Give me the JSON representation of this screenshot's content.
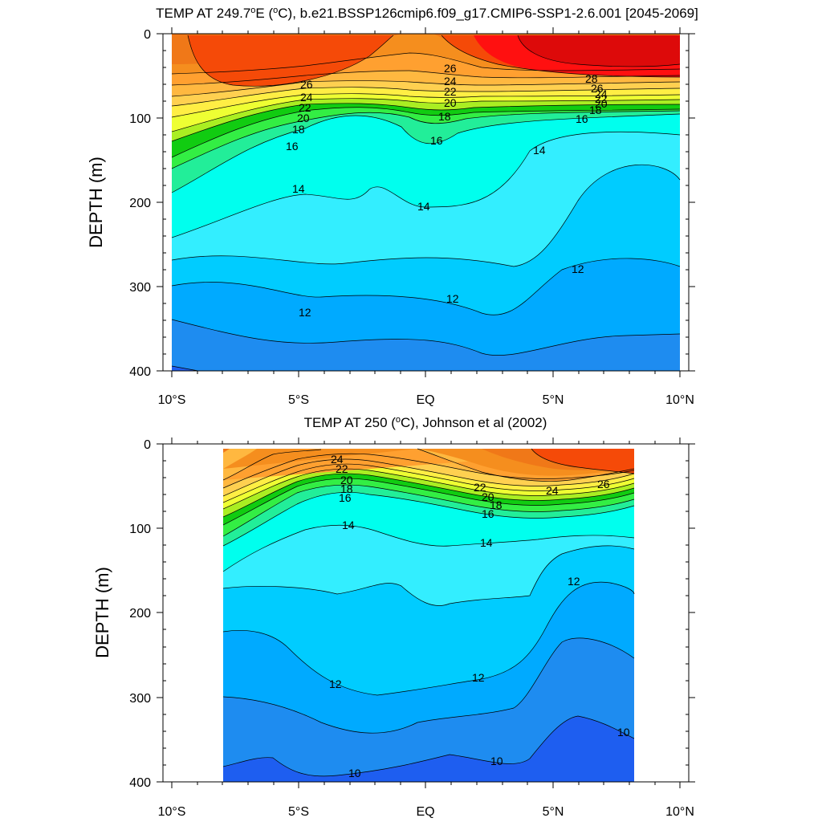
{
  "figure": {
    "panels": [
      {
        "title_main": "TEMP AT 249.7",
        "title_deg": "o",
        "title_rest": "E (",
        "title_deg2": "o",
        "title_tail": "C), b.e21.BSSP126cmip6.f09_g17.CMIP6-SSP1-2.6.001 [2045-2069]",
        "ylabel": "DEPTH (m)"
      },
      {
        "title_main": "TEMP AT 250 (",
        "title_deg": "o",
        "title_rest": "C), Johnson et al (2002)",
        "title_deg2": "",
        "title_tail": "",
        "ylabel": "DEPTH (m)"
      }
    ],
    "x_tick_labels": [
      "10°S",
      "5°S",
      "EQ",
      "5°N",
      "10°N"
    ],
    "y_tick_labels": [
      "0",
      "100",
      "200",
      "300",
      "400"
    ],
    "colors": {
      "c10": "#1e5ef0",
      "c11": "#1e8cf0",
      "c12": "#00aaff",
      "c13": "#00ccff",
      "c14": "#33eeff",
      "c15": "#00ffee",
      "c16": "#22ee99",
      "c17": "#33ee44",
      "c18": "#11cc11",
      "c19": "#aaee22",
      "c20": "#eeff33",
      "c21": "#ffee44",
      "c22": "#ffd050",
      "c23": "#ffb840",
      "c24": "#ffa030",
      "c25": "#f58e1e",
      "c26": "#f07818",
      "c27": "#f54a08",
      "c28": "#ff1010",
      "c29": "#dd0a0a"
    }
  },
  "chart_data": [
    {
      "type": "heatmap",
      "subtype": "filled contour",
      "title": "TEMP AT 249.7°E (°C), b.e21.BSSP126cmip6.f09_g17.CMIP6-SSP1-2.6.001 [2045-2069]",
      "xlabel": "",
      "ylabel": "DEPTH (m)",
      "xlim": [
        -10,
        10
      ],
      "ylim": [
        400,
        0
      ],
      "x_ticks": [
        -10,
        -5,
        0,
        5,
        10
      ],
      "y_ticks": [
        0,
        100,
        200,
        300,
        400
      ],
      "grid": false,
      "data_extent_x": [
        -10,
        10
      ],
      "isotherms": {
        "x": [
          -10,
          -8,
          -6,
          -4,
          -2,
          0,
          2,
          4,
          6,
          8,
          10
        ],
        "levels": [
          {
            "t": 28,
            "depth": [
              null,
              null,
              null,
              null,
              null,
              null,
              null,
              45,
              50,
              48,
              45
            ]
          },
          {
            "t": 26,
            "depth": [
              45,
              60,
              62,
              55,
              45,
              48,
              52,
              58,
              62,
              60,
              58
            ]
          },
          {
            "t": 24,
            "depth": [
              70,
              75,
              72,
              68,
              64,
              70,
              72,
              72,
              74,
              72,
              70
            ]
          },
          {
            "t": 22,
            "depth": [
              82,
              84,
              80,
              76,
              74,
              80,
              80,
              80,
              80,
              78,
              76
            ]
          },
          {
            "t": 20,
            "depth": [
              100,
              96,
              88,
              82,
              82,
              90,
              86,
              84,
              84,
              82,
              80
            ]
          },
          {
            "t": 18,
            "depth": [
              130,
              115,
              100,
              88,
              90,
              105,
              95,
              90,
              88,
              86,
              84
            ]
          },
          {
            "t": 16,
            "depth": [
              165,
              140,
              120,
              105,
              115,
              145,
              120,
              105,
              98,
              95,
              92
            ]
          },
          {
            "t": 14,
            "depth": [
              240,
              215,
              190,
              195,
              205,
              205,
              190,
              145,
              120,
              118,
              120
            ]
          },
          {
            "t": 13,
            "depth": [
              268,
              262,
              268,
              278,
              268,
              266,
              275,
              240,
              175,
              150,
              170
            ]
          },
          {
            "t": 12,
            "depth": [
              300,
              292,
              305,
              318,
              312,
              312,
              325,
              310,
              265,
              258,
              275
            ]
          },
          {
            "t": 11,
            "depth": [
              340,
              355,
              362,
              365,
              360,
              362,
              378,
              382,
              365,
              360,
              355
            ]
          },
          {
            "t": 10,
            "depth": [
              390,
              420,
              420,
              420,
              420,
              420,
              420,
              420,
              420,
              420,
              420
            ]
          }
        ]
      },
      "contour_labels": [
        "26",
        "24",
        "22",
        "20",
        "18",
        "16",
        "14",
        "14",
        "12",
        "12",
        "12",
        "26",
        "24",
        "22",
        "20",
        "18",
        "16",
        "14",
        "28",
        "26",
        "24",
        "22",
        "20",
        "18",
        "16"
      ]
    },
    {
      "type": "heatmap",
      "subtype": "filled contour",
      "title": "TEMP AT 250 (°C), Johnson et al (2002)",
      "xlabel": "",
      "ylabel": "DEPTH (m)",
      "xlim": [
        -10,
        10
      ],
      "ylim": [
        400,
        0
      ],
      "x_ticks": [
        -10,
        -5,
        0,
        5,
        10
      ],
      "y_ticks": [
        0,
        100,
        200,
        300,
        400
      ],
      "grid": false,
      "data_extent_x": [
        -8,
        8.2
      ],
      "isotherms": {
        "x": [
          -8,
          -6,
          -4,
          -2,
          0,
          2,
          4,
          6,
          8.2
        ],
        "levels": [
          {
            "t": 26,
            "depth": [
              null,
              null,
              null,
              null,
              null,
              null,
              null,
              20,
              30
            ]
          },
          {
            "t": 24,
            "depth": [
              60,
              38,
              18,
              10,
              20,
              35,
              48,
              40,
              45
            ]
          },
          {
            "t": 22,
            "depth": [
              72,
              52,
              28,
              22,
              30,
              48,
              60,
              52,
              55
            ]
          },
          {
            "t": 20,
            "depth": [
              82,
              60,
              38,
              35,
              40,
              58,
              68,
              62,
              62
            ]
          },
          {
            "t": 18,
            "depth": [
              95,
              72,
              48,
              45,
              50,
              65,
              75,
              70,
              68
            ]
          },
          {
            "t": 16,
            "depth": [
              115,
              88,
              62,
              60,
              68,
              78,
              85,
              80,
              78
            ]
          },
          {
            "t": 14,
            "depth": [
              150,
              130,
              100,
              95,
              115,
              125,
              120,
              110,
              115
            ]
          },
          {
            "t": 13,
            "depth": [
              170,
              168,
              180,
              175,
              190,
              185,
              185,
              125,
              175
            ]
          },
          {
            "t": 12,
            "depth": [
              220,
              218,
              250,
              290,
              285,
              270,
              260,
              185,
              245
            ]
          },
          {
            "t": 11,
            "depth": [
              300,
              300,
              330,
              345,
              330,
              315,
              310,
              235,
              290
            ]
          },
          {
            "t": 10,
            "depth": [
              380,
              372,
              392,
              385,
              375,
              368,
              375,
              335,
              345
            ]
          }
        ]
      },
      "contour_labels": [
        "24",
        "22",
        "20",
        "18",
        "16",
        "14",
        "12",
        "10",
        "22",
        "20",
        "18",
        "16",
        "14",
        "12",
        "10",
        "24",
        "26",
        "12",
        "10"
      ]
    }
  ]
}
